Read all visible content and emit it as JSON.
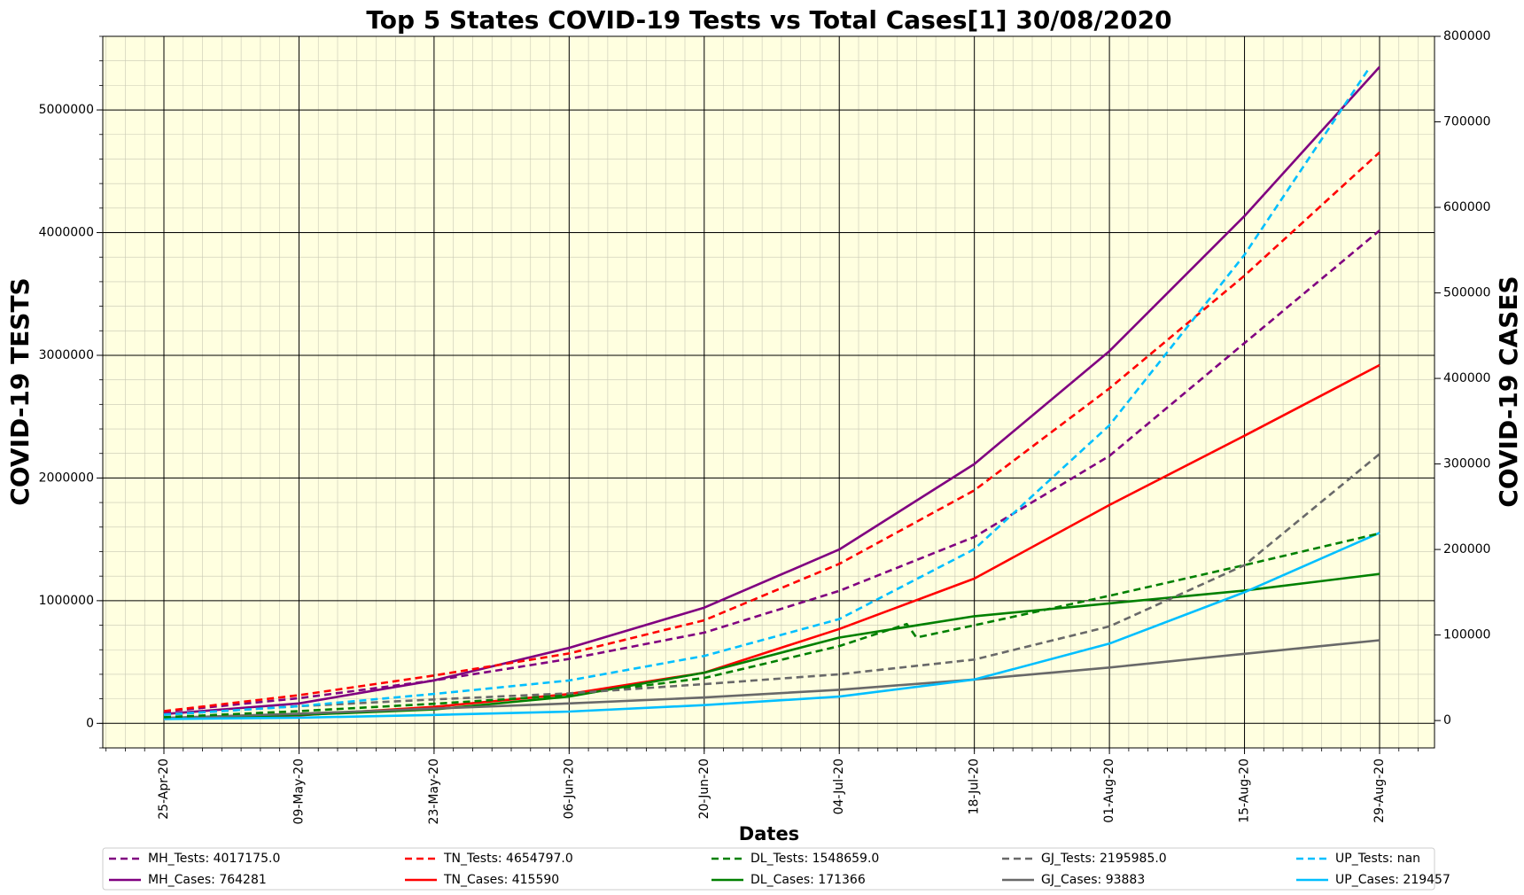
{
  "chart_data": {
    "type": "line",
    "title": "Top 5 States COVID-19 Tests vs Total Cases[1] 30/08/2020",
    "xlabel": "Dates",
    "ylabel_left": "COVID-19 TESTS",
    "ylabel_right": "COVID-19 CASES",
    "x_ticks": [
      "25-Apr-20",
      "09-May-20",
      "23-May-20",
      "06-Jun-20",
      "20-Jun-20",
      "04-Jul-20",
      "18-Jul-20",
      "01-Aug-20",
      "15-Aug-20",
      "29-Aug-20"
    ],
    "ylim_left": [
      -200000,
      5600000
    ],
    "yticks_left": [
      "0",
      "1000000",
      "2000000",
      "3000000",
      "4000000",
      "5000000"
    ],
    "ylim_right": [
      -32000,
      800000
    ],
    "yticks_right": [
      "0",
      "100000",
      "200000",
      "300000",
      "400000",
      "500000",
      "600000",
      "700000",
      "800000"
    ],
    "grid": true,
    "background": "#ffffe0",
    "legend_placement": "bottom",
    "series": [
      {
        "name": "MH_Tests: 4017175.0",
        "axis": "left",
        "style": "dashed",
        "color": "#800080",
        "x": [
          "25-Apr-20",
          "09-May-20",
          "23-May-20",
          "06-Jun-20",
          "20-Jun-20",
          "04-Jul-20",
          "18-Jul-20",
          "01-Aug-20",
          "15-Aug-20",
          "29-Aug-20"
        ],
        "values": [
          95000,
          205000,
          350000,
          525000,
          740000,
          1080000,
          1520000,
          2180000,
          3100000,
          4017175
        ]
      },
      {
        "name": "TN_Tests: 4654797.0",
        "axis": "left",
        "style": "dashed",
        "color": "#ff0000",
        "x": [
          "25-Apr-20",
          "09-May-20",
          "23-May-20",
          "06-Jun-20",
          "20-Jun-20",
          "04-Jul-20",
          "18-Jul-20",
          "01-Aug-20",
          "15-Aug-20",
          "29-Aug-20"
        ],
        "values": [
          100000,
          230000,
          390000,
          570000,
          840000,
          1300000,
          1900000,
          2730000,
          3650000,
          4654797
        ]
      },
      {
        "name": "DL_Tests: 1548659.0",
        "axis": "left",
        "style": "dashed",
        "color": "#008000",
        "x": [
          "25-Apr-20",
          "09-May-20",
          "23-May-20",
          "06-Jun-20",
          "20-Jun-20",
          "04-Jul-20",
          "11-Jul-20",
          "12-Jul-20",
          "18-Jul-20",
          "01-Aug-20",
          "15-Aug-20",
          "29-Aug-20"
        ],
        "values": [
          50000,
          100000,
          160000,
          230000,
          370000,
          630000,
          810000,
          700000,
          800000,
          1040000,
          1290000,
          1548659
        ]
      },
      {
        "name": "GJ_Tests: 2195985.0",
        "axis": "left",
        "style": "dashed",
        "color": "#696969",
        "x": [
          "25-Apr-20",
          "09-May-20",
          "23-May-20",
          "06-Jun-20",
          "20-Jun-20",
          "04-Jul-20",
          "18-Jul-20",
          "01-Aug-20",
          "15-Aug-20",
          "29-Aug-20"
        ],
        "values": [
          70000,
          140000,
          195000,
          245000,
          320000,
          400000,
          520000,
          790000,
          1290000,
          2195985
        ]
      },
      {
        "name": "UP_Tests: nan",
        "axis": "left",
        "style": "dashed",
        "color": "#00bfff",
        "x": [
          "25-Apr-20",
          "09-May-20",
          "23-May-20",
          "06-Jun-20",
          "20-Jun-20",
          "04-Jul-20",
          "18-Jul-20",
          "01-Aug-20",
          "15-Aug-20",
          "28-Aug-20"
        ],
        "values": [
          70000,
          140000,
          240000,
          350000,
          550000,
          850000,
          1420000,
          2430000,
          3820000,
          5350000
        ]
      },
      {
        "name": "MH_Cases: 764281",
        "axis": "right",
        "style": "solid",
        "color": "#800080",
        "x": [
          "25-Apr-20",
          "09-May-20",
          "23-May-20",
          "06-Jun-20",
          "20-Jun-20",
          "04-Jul-20",
          "18-Jul-20",
          "01-Aug-20",
          "15-Aug-20",
          "29-Aug-20"
        ],
        "values": [
          7600,
          20000,
          47000,
          85000,
          132000,
          200000,
          300000,
          432000,
          590000,
          764281
        ]
      },
      {
        "name": "TN_Cases: 415590",
        "axis": "right",
        "style": "solid",
        "color": "#ff0000",
        "x": [
          "25-Apr-20",
          "09-May-20",
          "23-May-20",
          "06-Jun-20",
          "20-Jun-20",
          "04-Jul-20",
          "18-Jul-20",
          "01-Aug-20",
          "15-Aug-20",
          "29-Aug-20"
        ],
        "values": [
          1800,
          6000,
          16000,
          31000,
          56000,
          107000,
          166000,
          252000,
          333000,
          415590
        ]
      },
      {
        "name": "DL_Cases: 171366",
        "axis": "right",
        "style": "solid",
        "color": "#008000",
        "x": [
          "25-Apr-20",
          "09-May-20",
          "23-May-20",
          "06-Jun-20",
          "20-Jun-20",
          "04-Jul-20",
          "18-Jul-20",
          "01-Aug-20",
          "15-Aug-20",
          "29-Aug-20"
        ],
        "values": [
          2600,
          6500,
          13000,
          28000,
          56000,
          97000,
          122000,
          137000,
          152000,
          171366
        ]
      },
      {
        "name": "GJ_Cases: 93883",
        "axis": "right",
        "style": "solid",
        "color": "#696969",
        "x": [
          "25-Apr-20",
          "09-May-20",
          "23-May-20",
          "06-Jun-20",
          "20-Jun-20",
          "04-Jul-20",
          "18-Jul-20",
          "01-Aug-20",
          "15-Aug-20",
          "29-Aug-20"
        ],
        "values": [
          3000,
          8000,
          14000,
          20000,
          27000,
          36000,
          48000,
          62000,
          78000,
          93883
        ]
      },
      {
        "name": "UP_Cases: 219457",
        "axis": "right",
        "style": "solid",
        "color": "#00bfff",
        "x": [
          "25-Apr-20",
          "09-May-20",
          "23-May-20",
          "06-Jun-20",
          "20-Jun-20",
          "04-Jul-20",
          "18-Jul-20",
          "01-Aug-20",
          "15-Aug-20",
          "29-Aug-20"
        ],
        "values": [
          1800,
          3300,
          6500,
          10500,
          18000,
          28000,
          48000,
          90000,
          150000,
          219457
        ]
      }
    ]
  }
}
